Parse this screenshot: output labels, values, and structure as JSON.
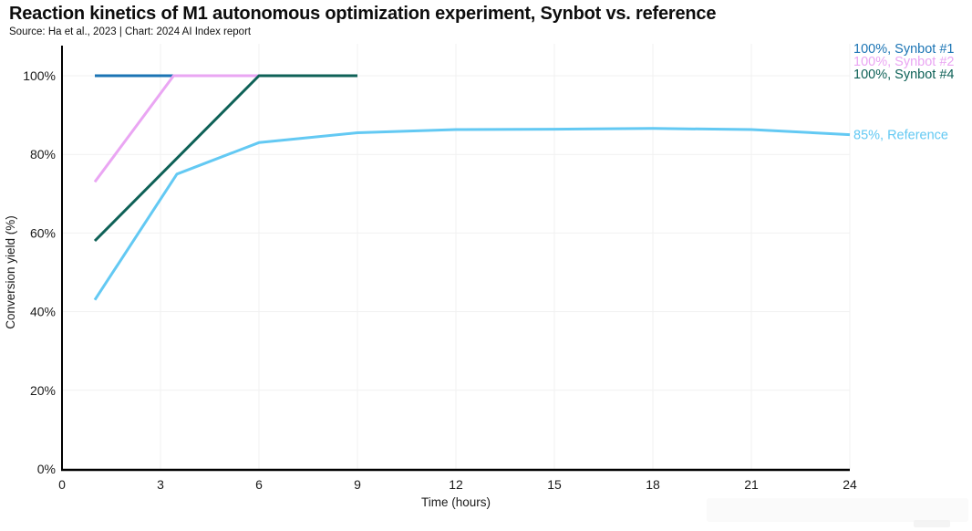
{
  "header": {
    "title": "Reaction kinetics of M1 autonomous optimization experiment, Synbot vs. reference",
    "subtitle": "Source: Ha et al., 2023 | Chart: 2024 AI Index report"
  },
  "chart_data": {
    "type": "line",
    "title": "Reaction kinetics of M1 autonomous optimization experiment, Synbot vs. reference",
    "xlabel": "Time (hours)",
    "ylabel": "Conversion yield (%)",
    "xlim": [
      0,
      24
    ],
    "ylim": [
      0,
      100
    ],
    "xticks": [
      0,
      3,
      6,
      9,
      12,
      15,
      18,
      21,
      24
    ],
    "xtick_labels": [
      "0",
      "3",
      "6",
      "9",
      "12",
      "15",
      "18",
      "21",
      "24"
    ],
    "yticks": [
      0,
      20,
      40,
      60,
      80,
      100
    ],
    "ytick_labels": [
      "0%",
      "20%",
      "40%",
      "60%",
      "80%",
      "100%"
    ],
    "grid": true,
    "legend_position": "end-of-line-labels-right",
    "axis_color": "#000000",
    "grid_color": "#f1f1f1",
    "tick_text_color": "#1a1a1a",
    "series": [
      {
        "name": "Synbot #1",
        "end_label": "100%, Synbot #1",
        "color": "#1b74b4",
        "x": [
          1,
          9
        ],
        "y": [
          100,
          100
        ],
        "label_row": 0
      },
      {
        "name": "Synbot #2",
        "end_label": "100%, Synbot #2",
        "color": "#eaa6f3",
        "x": [
          1,
          3.4,
          9
        ],
        "y": [
          73,
          100,
          100
        ],
        "label_row": 1
      },
      {
        "name": "Synbot #4",
        "end_label": "100%, Synbot #4",
        "color": "#0e6157",
        "x": [
          1,
          6,
          9
        ],
        "y": [
          58,
          100,
          100
        ],
        "label_row": 2
      },
      {
        "name": "Reference",
        "end_label": "85%, Reference",
        "color": "#63c9f3",
        "x": [
          1,
          3.5,
          6,
          9,
          12,
          15,
          18,
          21,
          24
        ],
        "y": [
          43,
          75,
          83,
          85.5,
          86.3,
          86.4,
          86.6,
          86.3,
          85
        ],
        "label_row": null
      }
    ]
  }
}
